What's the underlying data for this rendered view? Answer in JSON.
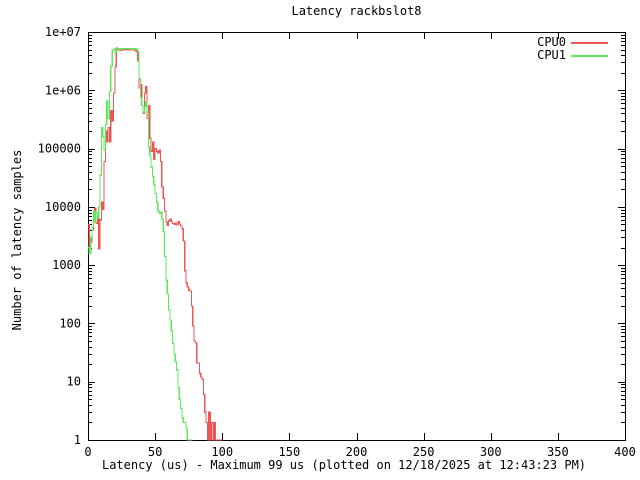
{
  "title": "Latency rackbslot8",
  "y_axis": {
    "label": "Number of latency samples",
    "tick_labels": [
      "1",
      "10",
      "100",
      "1000",
      "10000",
      "100000",
      "1e+06",
      "1e+07"
    ]
  },
  "x_axis": {
    "caption": "Latency (us) - Maximum 99 us (plotted on 12/18/2025 at 12:43:23 PM)",
    "tick_labels": [
      "0",
      "50",
      "100",
      "150",
      "200",
      "250",
      "300",
      "350",
      "400"
    ]
  },
  "legend": {
    "position": "top-right",
    "entries": [
      {
        "label": "CPU0",
        "color": "#ee5555"
      },
      {
        "label": "CPU1",
        "color": "#5de85d"
      }
    ]
  },
  "chart_data": {
    "type": "line",
    "line_style": "steps",
    "title": "Latency rackbslot8",
    "xlabel": "Latency (us) - Maximum 99 us (plotted on 12/18/2025 at 12:43:23 PM)",
    "ylabel": "Number of latency samples",
    "x_range": [
      0,
      400
    ],
    "y_range": [
      1,
      10000000
    ],
    "y_scale": "log",
    "grid": false,
    "legend_position": "top-right",
    "max_latency_us": 99,
    "series": [
      {
        "name": "CPU0",
        "color": "#ee5555",
        "x_start": 0,
        "x_step": 1,
        "values": [
          5000,
          1800,
          2500,
          4000,
          7000,
          9500,
          5200,
          8000,
          1900,
          6000,
          12000,
          9000,
          60000,
          200000,
          130000,
          230000,
          130000,
          450000,
          300000,
          900000,
          2500000,
          5300000,
          4900000,
          4900000,
          4800000,
          4900000,
          5000000,
          4900000,
          5000000,
          4900000,
          5000000,
          4900000,
          5000000,
          4900000,
          4900000,
          4800000,
          4600000,
          3200000,
          1100000,
          1250000,
          550000,
          400000,
          900000,
          1150000,
          330000,
          550000,
          150000,
          90000,
          130000,
          65000,
          100000,
          90000,
          85000,
          95000,
          60000,
          22000,
          14000,
          8500,
          5500,
          4800,
          5800,
          6200,
          5600,
          5200,
          5000,
          5300,
          4900,
          5600,
          5100,
          4700,
          4200,
          2600,
          800,
          500,
          420,
          370,
          360,
          200,
          90,
          50,
          46,
          21,
          21,
          14,
          12,
          11,
          6,
          3,
          2,
          1,
          3,
          1,
          2,
          1,
          2,
          1,
          1,
          1,
          1,
          1
        ]
      },
      {
        "name": "CPU1",
        "color": "#5de85d",
        "x_start": 0,
        "x_step": 1,
        "values": [
          2000,
          1600,
          3000,
          4500,
          8500,
          5500,
          8000,
          6500,
          10000,
          35000,
          230000,
          160000,
          95000,
          260000,
          650000,
          330000,
          950000,
          2600000,
          4900000,
          5100000,
          4500000,
          5100000,
          5200000,
          5200000,
          5000000,
          5200000,
          5100000,
          5200000,
          5200000,
          5100000,
          5200000,
          5200000,
          5000000,
          5200000,
          5100000,
          5200000,
          5100000,
          4600000,
          1600000,
          750000,
          550000,
          420000,
          520000,
          640000,
          430000,
          105000,
          75000,
          48000,
          33000,
          24000,
          17000,
          12000,
          8500,
          7800,
          8200,
          6200,
          3800,
          1400,
          550,
          320,
          170,
          115,
          75,
          45,
          30,
          22,
          16,
          8,
          5,
          3.5,
          2.4,
          2,
          2,
          1.6,
          1,
          1,
          1,
          1
        ]
      }
    ]
  }
}
